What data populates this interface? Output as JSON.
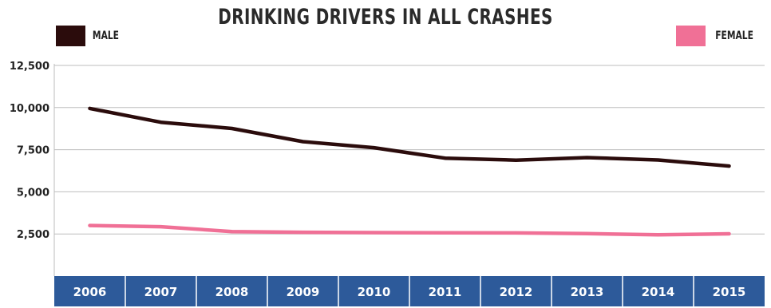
{
  "chart_data": {
    "type": "line",
    "title": "DRINKING DRIVERS IN ALL CRASHES",
    "x": [
      "2006",
      "2007",
      "2008",
      "2009",
      "2010",
      "2011",
      "2012",
      "2013",
      "2014",
      "2015"
    ],
    "series": [
      {
        "name": "MALE",
        "color": "#2b0c0c",
        "values": [
          9950,
          9130,
          8760,
          7980,
          7620,
          7000,
          6880,
          7030,
          6890,
          6530
        ]
      },
      {
        "name": "FEMALE",
        "color": "#f07096",
        "values": [
          3000,
          2930,
          2640,
          2600,
          2580,
          2570,
          2560,
          2520,
          2450,
          2510
        ]
      }
    ],
    "yticks": [
      2500,
      5000,
      7500,
      10000,
      12500
    ],
    "ytick_labels": [
      "2,500",
      "5,000",
      "7,500",
      "10,000",
      "12,500"
    ],
    "ylim": [
      0,
      12500
    ],
    "xlabel": "",
    "ylabel": "",
    "legend_placement": "top",
    "grid": true,
    "axis_band_color": "#2d5a9a"
  }
}
